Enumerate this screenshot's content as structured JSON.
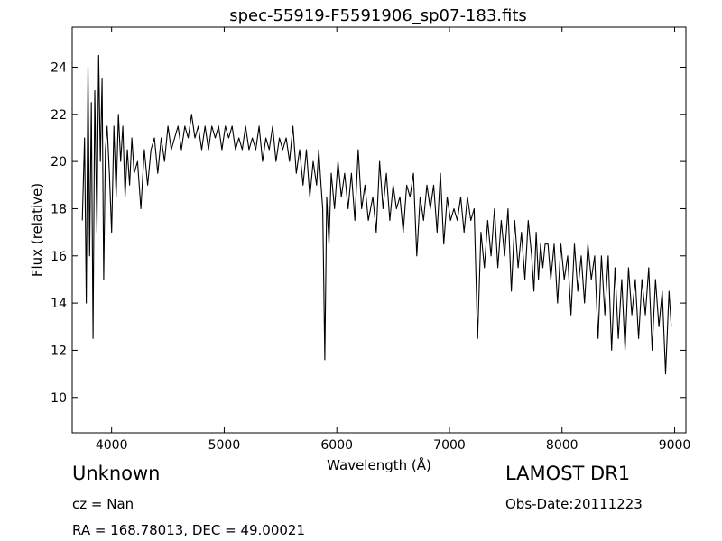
{
  "chart_data": {
    "type": "line",
    "title": "spec-55919-F5591906_sp07-183.fits",
    "xlabel": "Wavelength (Å)",
    "ylabel": "Flux (relative)",
    "xlim": [
      3650,
      9100
    ],
    "ylim": [
      8.5,
      25.7
    ],
    "xticks": [
      4000,
      5000,
      6000,
      7000,
      8000,
      9000
    ],
    "yticks": [
      10,
      12,
      14,
      16,
      18,
      20,
      22,
      24
    ],
    "grid": false,
    "line_color": "#000000",
    "series": [
      {
        "values": [
          [
            3740,
            17.5
          ],
          [
            3760,
            21.0
          ],
          [
            3775,
            14.0
          ],
          [
            3790,
            24.0
          ],
          [
            3805,
            16.0
          ],
          [
            3820,
            22.5
          ],
          [
            3835,
            12.5
          ],
          [
            3850,
            23.0
          ],
          [
            3870,
            17.0
          ],
          [
            3885,
            24.5
          ],
          [
            3900,
            20.0
          ],
          [
            3915,
            23.5
          ],
          [
            3930,
            15.0
          ],
          [
            3945,
            20.5
          ],
          [
            3960,
            21.5
          ],
          [
            3980,
            19.5
          ],
          [
            4000,
            17.0
          ],
          [
            4020,
            21.5
          ],
          [
            4040,
            18.5
          ],
          [
            4060,
            22.0
          ],
          [
            4080,
            20.0
          ],
          [
            4100,
            21.5
          ],
          [
            4120,
            18.5
          ],
          [
            4140,
            20.5
          ],
          [
            4160,
            19.0
          ],
          [
            4180,
            21.0
          ],
          [
            4200,
            19.5
          ],
          [
            4230,
            20.0
          ],
          [
            4260,
            18.0
          ],
          [
            4290,
            20.5
          ],
          [
            4320,
            19.0
          ],
          [
            4350,
            20.5
          ],
          [
            4380,
            21.0
          ],
          [
            4410,
            19.5
          ],
          [
            4440,
            21.0
          ],
          [
            4470,
            20.0
          ],
          [
            4500,
            21.5
          ],
          [
            4530,
            20.5
          ],
          [
            4560,
            21.0
          ],
          [
            4590,
            21.5
          ],
          [
            4620,
            20.5
          ],
          [
            4650,
            21.5
          ],
          [
            4680,
            21.0
          ],
          [
            4710,
            22.0
          ],
          [
            4740,
            21.0
          ],
          [
            4770,
            21.5
          ],
          [
            4800,
            20.5
          ],
          [
            4830,
            21.5
          ],
          [
            4860,
            20.5
          ],
          [
            4890,
            21.5
          ],
          [
            4920,
            21.0
          ],
          [
            4950,
            21.5
          ],
          [
            4980,
            20.5
          ],
          [
            5010,
            21.5
          ],
          [
            5040,
            21.0
          ],
          [
            5070,
            21.5
          ],
          [
            5100,
            20.5
          ],
          [
            5130,
            21.0
          ],
          [
            5160,
            20.5
          ],
          [
            5190,
            21.5
          ],
          [
            5220,
            20.5
          ],
          [
            5250,
            21.0
          ],
          [
            5280,
            20.5
          ],
          [
            5310,
            21.5
          ],
          [
            5340,
            20.0
          ],
          [
            5370,
            21.0
          ],
          [
            5400,
            20.5
          ],
          [
            5430,
            21.5
          ],
          [
            5460,
            20.0
          ],
          [
            5490,
            21.0
          ],
          [
            5520,
            20.5
          ],
          [
            5550,
            21.0
          ],
          [
            5580,
            20.0
          ],
          [
            5610,
            21.5
          ],
          [
            5640,
            19.5
          ],
          [
            5670,
            20.5
          ],
          [
            5700,
            19.0
          ],
          [
            5730,
            20.5
          ],
          [
            5760,
            18.5
          ],
          [
            5790,
            20.0
          ],
          [
            5820,
            19.0
          ],
          [
            5840,
            20.5
          ],
          [
            5860,
            19.0
          ],
          [
            5875,
            18.0
          ],
          [
            5893,
            11.6
          ],
          [
            5910,
            18.5
          ],
          [
            5930,
            16.5
          ],
          [
            5950,
            19.5
          ],
          [
            5980,
            18.0
          ],
          [
            6010,
            20.0
          ],
          [
            6040,
            18.5
          ],
          [
            6070,
            19.5
          ],
          [
            6100,
            18.0
          ],
          [
            6130,
            19.5
          ],
          [
            6160,
            17.5
          ],
          [
            6190,
            20.5
          ],
          [
            6220,
            18.0
          ],
          [
            6250,
            19.0
          ],
          [
            6280,
            17.5
          ],
          [
            6300,
            18.0
          ],
          [
            6320,
            18.5
          ],
          [
            6350,
            17.0
          ],
          [
            6380,
            20.0
          ],
          [
            6410,
            18.0
          ],
          [
            6440,
            19.5
          ],
          [
            6470,
            17.5
          ],
          [
            6500,
            19.0
          ],
          [
            6530,
            18.0
          ],
          [
            6560,
            18.5
          ],
          [
            6590,
            17.0
          ],
          [
            6620,
            19.0
          ],
          [
            6650,
            18.5
          ],
          [
            6680,
            19.5
          ],
          [
            6710,
            16.0
          ],
          [
            6740,
            18.5
          ],
          [
            6770,
            17.5
          ],
          [
            6800,
            19.0
          ],
          [
            6830,
            18.0
          ],
          [
            6860,
            19.0
          ],
          [
            6890,
            17.0
          ],
          [
            6920,
            19.5
          ],
          [
            6950,
            16.5
          ],
          [
            6980,
            18.5
          ],
          [
            7010,
            17.5
          ],
          [
            7040,
            18.0
          ],
          [
            7070,
            17.5
          ],
          [
            7100,
            18.5
          ],
          [
            7130,
            17.0
          ],
          [
            7160,
            18.5
          ],
          [
            7190,
            17.5
          ],
          [
            7220,
            18.0
          ],
          [
            7250,
            12.5
          ],
          [
            7280,
            17.0
          ],
          [
            7310,
            15.5
          ],
          [
            7340,
            17.5
          ],
          [
            7370,
            16.0
          ],
          [
            7400,
            18.0
          ],
          [
            7430,
            15.5
          ],
          [
            7460,
            17.5
          ],
          [
            7490,
            16.0
          ],
          [
            7520,
            18.0
          ],
          [
            7550,
            14.5
          ],
          [
            7580,
            17.5
          ],
          [
            7610,
            15.5
          ],
          [
            7640,
            17.0
          ],
          [
            7670,
            15.0
          ],
          [
            7700,
            17.5
          ],
          [
            7730,
            16.0
          ],
          [
            7750,
            14.5
          ],
          [
            7770,
            17.0
          ],
          [
            7790,
            15.0
          ],
          [
            7810,
            16.5
          ],
          [
            7830,
            15.5
          ],
          [
            7850,
            16.5
          ],
          [
            7875,
            16.5
          ],
          [
            7900,
            15.0
          ],
          [
            7930,
            16.5
          ],
          [
            7960,
            14.0
          ],
          [
            7990,
            16.5
          ],
          [
            8020,
            15.0
          ],
          [
            8050,
            16.0
          ],
          [
            8080,
            13.5
          ],
          [
            8110,
            16.5
          ],
          [
            8140,
            14.5
          ],
          [
            8170,
            16.0
          ],
          [
            8200,
            14.0
          ],
          [
            8230,
            16.5
          ],
          [
            8260,
            15.0
          ],
          [
            8290,
            16.0
          ],
          [
            8320,
            12.5
          ],
          [
            8350,
            16.0
          ],
          [
            8380,
            13.5
          ],
          [
            8410,
            16.0
          ],
          [
            8440,
            12.0
          ],
          [
            8470,
            15.5
          ],
          [
            8500,
            12.5
          ],
          [
            8530,
            15.0
          ],
          [
            8560,
            12.0
          ],
          [
            8590,
            15.5
          ],
          [
            8620,
            13.5
          ],
          [
            8650,
            15.0
          ],
          [
            8680,
            12.5
          ],
          [
            8710,
            15.0
          ],
          [
            8740,
            13.5
          ],
          [
            8770,
            15.5
          ],
          [
            8800,
            12.0
          ],
          [
            8830,
            15.0
          ],
          [
            8860,
            13.0
          ],
          [
            8890,
            14.5
          ],
          [
            8920,
            11.0
          ],
          [
            8950,
            14.5
          ],
          [
            8970,
            13.0
          ]
        ]
      }
    ]
  },
  "info": {
    "object_class": "Unknown",
    "redshift": "cz = Nan",
    "coordinates": "RA = 168.78013, DEC = 49.00021",
    "survey": "LAMOST DR1",
    "obs_date": "Obs-Date:20111223"
  }
}
